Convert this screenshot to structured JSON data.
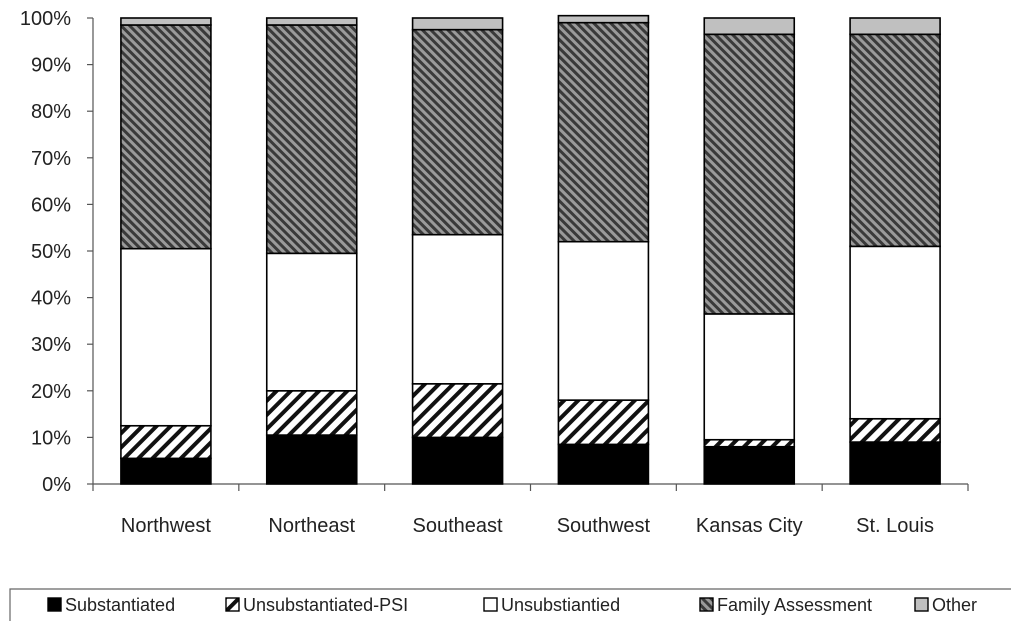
{
  "chart_data": {
    "type": "bar",
    "stacked": true,
    "percent": true,
    "categories": [
      "Northwest",
      "Northeast",
      "Southeast",
      "Southwest",
      "Kansas City",
      "St. Louis"
    ],
    "series": [
      {
        "name": "Substantiated",
        "pattern": "solid-black",
        "values": [
          5.5,
          10.5,
          10,
          8.5,
          8,
          9
        ]
      },
      {
        "name": "Unsubstantiated-PSI",
        "pattern": "sparse-diagonal-hatch",
        "values": [
          7,
          9.5,
          11.5,
          9.5,
          1.5,
          5
        ]
      },
      {
        "name": "Unsubstiantied",
        "pattern": "white",
        "values": [
          38,
          29.5,
          32,
          34,
          27,
          37
        ]
      },
      {
        "name": "Family Assessment",
        "pattern": "dense-diagonal-hatch",
        "values": [
          48,
          49,
          44,
          47,
          60,
          45.5
        ]
      },
      {
        "name": "Other",
        "pattern": "light-gray",
        "values": [
          1.5,
          1.5,
          2.5,
          1.5,
          3.5,
          3.5
        ]
      }
    ],
    "yticks": [
      "0%",
      "10%",
      "20%",
      "30%",
      "40%",
      "50%",
      "60%",
      "70%",
      "80%",
      "90%",
      "100%"
    ],
    "ylim": [
      0,
      100
    ],
    "legend_position": "bottom",
    "grid": false,
    "colors": {
      "substantiated": "#000000",
      "other": "#c0c0c0",
      "hatch_dark": "#3a3a3a"
    }
  }
}
